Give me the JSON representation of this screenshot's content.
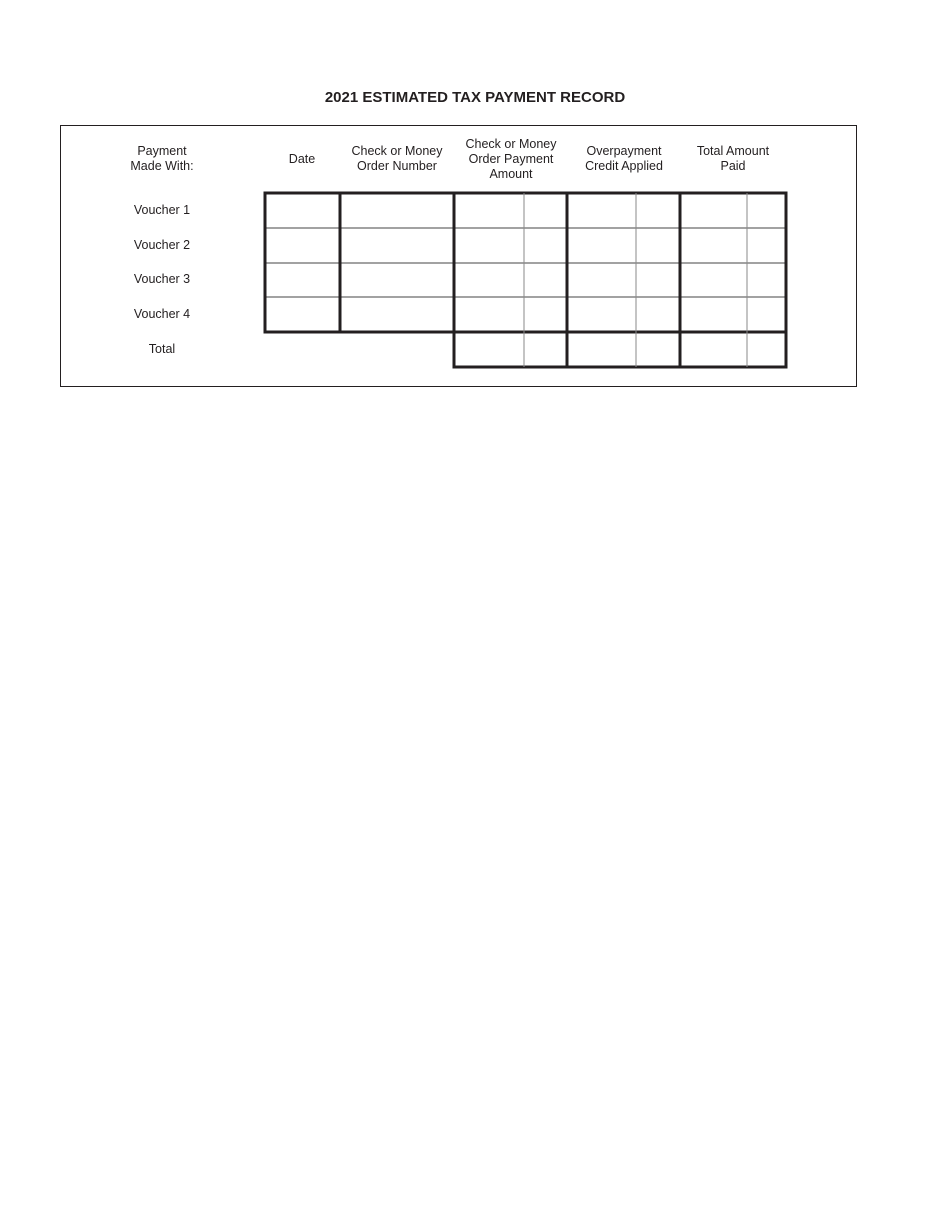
{
  "title": "2021 ESTIMATED TAX PAYMENT RECORD",
  "headers": {
    "payment_made_with": [
      "Payment",
      "Made With:"
    ],
    "date": [
      "Date"
    ],
    "check_number": [
      "Check or Money",
      "Order Number"
    ],
    "payment_amount": [
      "Check or Money",
      "Order Payment",
      "Amount"
    ],
    "overpayment": [
      "Overpayment",
      "Credit Applied"
    ],
    "total_paid": [
      "Total Amount",
      "Paid"
    ]
  },
  "rows": [
    "Voucher 1",
    "Voucher 2",
    "Voucher 3",
    "Voucher 4",
    "Total"
  ],
  "colors": {
    "ink": "#231f20",
    "thin_vertical": "#8a8a8a"
  }
}
